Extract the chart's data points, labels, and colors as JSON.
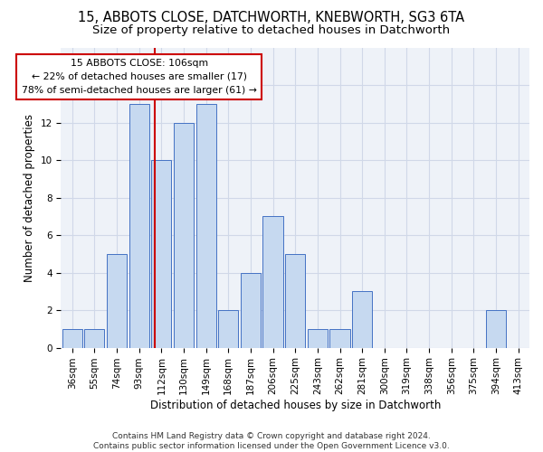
{
  "title_line1": "15, ABBOTS CLOSE, DATCHWORTH, KNEBWORTH, SG3 6TA",
  "title_line2": "Size of property relative to detached houses in Datchworth",
  "xlabel": "Distribution of detached houses by size in Datchworth",
  "ylabel": "Number of detached properties",
  "categories": [
    "36sqm",
    "55sqm",
    "74sqm",
    "93sqm",
    "112sqm",
    "130sqm",
    "149sqm",
    "168sqm",
    "187sqm",
    "206sqm",
    "225sqm",
    "243sqm",
    "262sqm",
    "281sqm",
    "300sqm",
    "319sqm",
    "338sqm",
    "356sqm",
    "375sqm",
    "394sqm",
    "413sqm"
  ],
  "values": [
    1,
    1,
    5,
    13,
    10,
    12,
    13,
    2,
    4,
    7,
    5,
    1,
    1,
    3,
    0,
    0,
    0,
    0,
    0,
    2,
    0
  ],
  "bar_color": "#c6d9f0",
  "bar_edge_color": "#4472c4",
  "vline_color": "#cc0000",
  "annotation_text": "15 ABBOTS CLOSE: 106sqm\n← 22% of detached houses are smaller (17)\n78% of semi-detached houses are larger (61) →",
  "annotation_box_color": "#ffffff",
  "annotation_box_edge": "#cc0000",
  "ylim": [
    0,
    16
  ],
  "yticks": [
    0,
    2,
    4,
    6,
    8,
    10,
    12,
    14
  ],
  "grid_color": "#d0d8e8",
  "bg_color": "#eef2f8",
  "footer": "Contains HM Land Registry data © Crown copyright and database right 2024.\nContains public sector information licensed under the Open Government Licence v3.0.",
  "title_fontsize": 10.5,
  "subtitle_fontsize": 9.5,
  "axis_label_fontsize": 8.5,
  "tick_fontsize": 7.5,
  "footer_fontsize": 6.5
}
